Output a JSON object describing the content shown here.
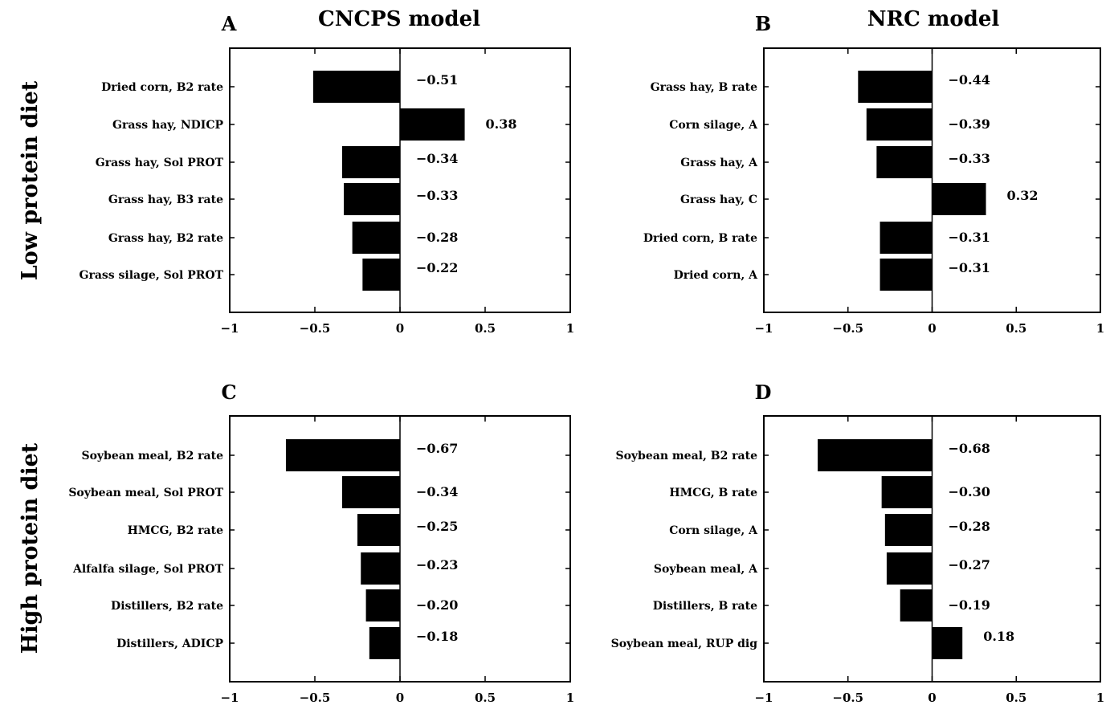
{
  "figure": {
    "column_titles": [
      "CNCPS model",
      "NRC model"
    ],
    "row_labels": [
      "Low protein diet",
      "High protein diet"
    ],
    "colors": {
      "bar": "#000000",
      "axis": "#000000",
      "background": "#ffffff"
    }
  },
  "chart_data": [
    {
      "type": "bar",
      "orientation": "horizontal",
      "panel": "A",
      "categories": [
        "Dried corn, B2 rate",
        "Grass hay, NDICP",
        "Grass hay, Sol PROT",
        "Grass hay, B3 rate",
        "Grass hay, B2 rate",
        "Grass silage, Sol PROT"
      ],
      "values": [
        -0.51,
        0.38,
        -0.34,
        -0.33,
        -0.28,
        -0.22
      ],
      "value_labels": [
        "−0.51",
        "0.38",
        "−0.34",
        "−0.33",
        "−0.28",
        "−0.22"
      ],
      "xlim": [
        -1,
        1
      ],
      "xticks": [
        -1,
        -0.5,
        0,
        0.5,
        1
      ],
      "xtick_labels": [
        "−1",
        "−0.5",
        "0",
        "0.5",
        "1"
      ],
      "grid": false
    },
    {
      "type": "bar",
      "orientation": "horizontal",
      "panel": "B",
      "categories": [
        "Grass hay, B rate",
        "Corn silage, A",
        "Grass hay, A",
        "Grass hay, C",
        "Dried corn, B rate",
        "Dried corn, A"
      ],
      "values": [
        -0.44,
        -0.39,
        -0.33,
        0.32,
        -0.31,
        -0.31
      ],
      "value_labels": [
        "−0.44",
        "−0.39",
        "−0.33",
        "0.32",
        "−0.31",
        "−0.31"
      ],
      "xlim": [
        -1,
        1
      ],
      "xticks": [
        -1,
        -0.5,
        0,
        0.5,
        1
      ],
      "xtick_labels": [
        "−1",
        "−0.5",
        "0",
        "0.5",
        "1"
      ],
      "grid": false
    },
    {
      "type": "bar",
      "orientation": "horizontal",
      "panel": "C",
      "categories": [
        "Soybean meal, B2 rate",
        "Soybean meal, Sol PROT",
        "HMCG, B2 rate",
        "Alfalfa silage, Sol PROT",
        "Distillers, B2 rate",
        "Distillers, ADICP"
      ],
      "values": [
        -0.67,
        -0.34,
        -0.25,
        -0.23,
        -0.2,
        -0.18
      ],
      "value_labels": [
        "−0.67",
        "−0.34",
        "−0.25",
        "−0.23",
        "−0.20",
        "−0.18"
      ],
      "xlim": [
        -1,
        1
      ],
      "xticks": [
        -1,
        -0.5,
        0,
        0.5,
        1
      ],
      "xtick_labels": [
        "−1",
        "−0.5",
        "0",
        "0.5",
        "1"
      ],
      "grid": false
    },
    {
      "type": "bar",
      "orientation": "horizontal",
      "panel": "D",
      "categories": [
        "Soybean meal, B2 rate",
        "HMCG, B rate",
        "Corn silage, A",
        "Soybean meal, A",
        "Distillers, B rate",
        "Soybean meal, RUP dig"
      ],
      "values": [
        -0.68,
        -0.3,
        -0.28,
        -0.27,
        -0.19,
        0.18
      ],
      "value_labels": [
        "−0.68",
        "−0.30",
        "−0.28",
        "−0.27",
        "−0.19",
        "0.18"
      ],
      "xlim": [
        -1,
        1
      ],
      "xticks": [
        -1,
        -0.5,
        0,
        0.5,
        1
      ],
      "xtick_labels": [
        "−1",
        "−0.5",
        "0",
        "0.5",
        "1"
      ],
      "grid": false
    }
  ]
}
